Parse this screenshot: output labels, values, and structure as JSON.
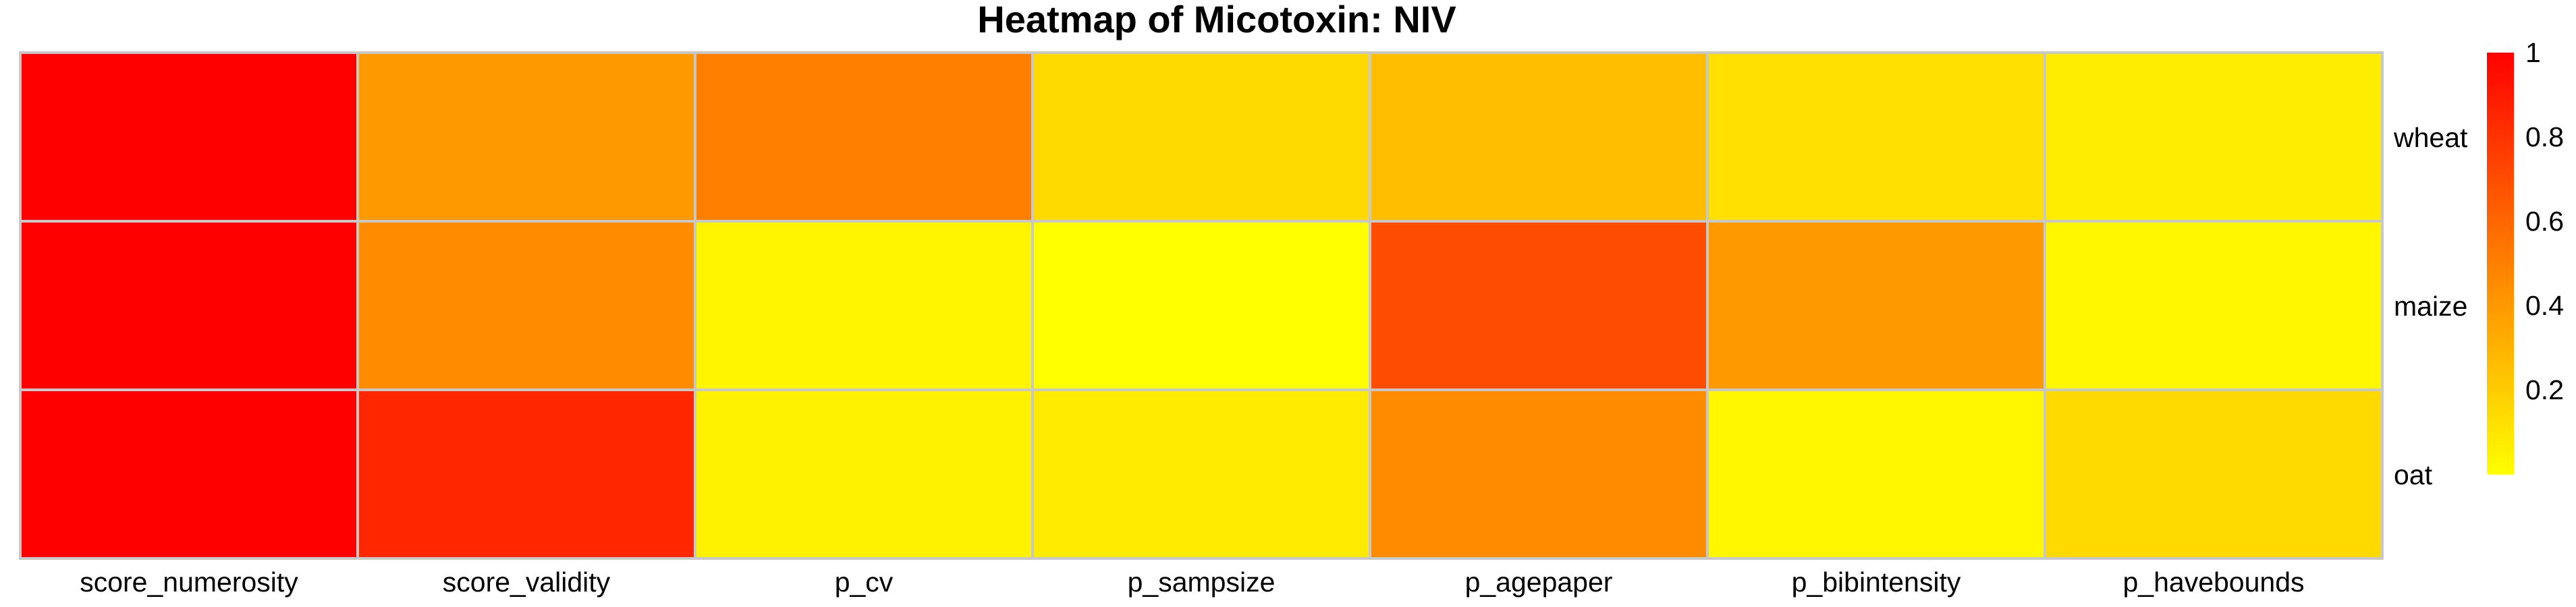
{
  "chart_data": {
    "type": "heatmap",
    "title": "Heatmap  of  Micotoxin: NIV",
    "x_categories": [
      "score_numerosity",
      "score_validity",
      "p_cv",
      "p_sampsize",
      "p_agepaper",
      "p_bibintensity",
      "p_havebounds"
    ],
    "y_categories": [
      "wheat",
      "maize",
      "oat"
    ],
    "values": [
      [
        1.0,
        0.4,
        0.5,
        0.15,
        0.25,
        0.12,
        0.07
      ],
      [
        1.0,
        0.45,
        0.04,
        0.0,
        0.7,
        0.4,
        0.03
      ],
      [
        1.0,
        0.85,
        0.05,
        0.08,
        0.45,
        0.03,
        0.15
      ]
    ],
    "color_scale": {
      "min": 0,
      "max": 1,
      "low_color": "#ffff00",
      "high_color": "#ff0000",
      "ticks": [
        0.2,
        0.4,
        0.6,
        0.8,
        1
      ],
      "tick_labels": [
        "0.2",
        "0.4",
        "0.6",
        "0.8",
        "1"
      ]
    },
    "grid_color": "#c8c8c8",
    "legend_position": "right"
  }
}
